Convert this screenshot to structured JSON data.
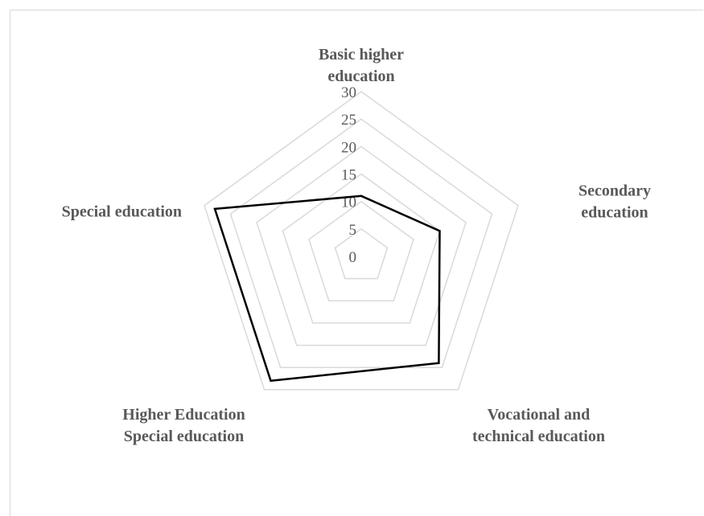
{
  "chart_data": {
    "type": "radar",
    "categories": [
      [
        "Basic higher",
        "education"
      ],
      [
        "Secondary",
        "education"
      ],
      [
        "Vocational and",
        "technical education"
      ],
      [
        "Higher Education",
        "Special education"
      ],
      [
        "Special education"
      ]
    ],
    "values": [
      11,
      15,
      24,
      28,
      28
    ],
    "rlim": [
      0,
      30
    ],
    "ticks": [
      "0",
      "5",
      "10",
      "15",
      "20",
      "25",
      "30"
    ],
    "grid": true,
    "legend": "none",
    "colors": {
      "series": "#000000",
      "grid": "#d9d9d9",
      "text": "#595959"
    }
  }
}
